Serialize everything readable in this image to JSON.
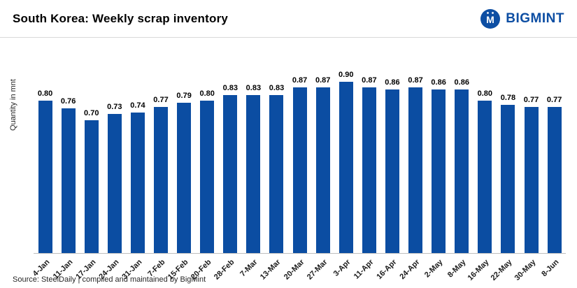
{
  "header": {
    "title": "South Korea: Weekly scrap inventory",
    "brand": "BIGMINT"
  },
  "chart_data": {
    "type": "bar",
    "title": "South Korea: Weekly scrap inventory",
    "categories": [
      "4-Jan",
      "11-Jan",
      "17-Jan",
      "24-Jan",
      "31-Jan",
      "7-Feb",
      "15-Feb",
      "20-Feb",
      "28-Feb",
      "7-Mar",
      "13-Mar",
      "20-Mar",
      "27-Mar",
      "3-Apr",
      "11-Apr",
      "16-Apr",
      "24-Apr",
      "2-May",
      "8-May",
      "16-May",
      "22-May",
      "30-May",
      "8-Jun"
    ],
    "values": [
      0.8,
      0.76,
      0.7,
      0.73,
      0.74,
      0.77,
      0.79,
      0.8,
      0.83,
      0.83,
      0.83,
      0.87,
      0.87,
      0.9,
      0.87,
      0.86,
      0.87,
      0.86,
      0.86,
      0.8,
      0.78,
      0.77,
      0.77
    ],
    "xlabel": "",
    "ylabel": "Quantity in mnt",
    "ylim": [
      0,
      1.0
    ],
    "bar_color": "#0b4da2",
    "grid": false,
    "legend": "none",
    "value_labels": true
  },
  "footer": {
    "source": "Source: SteelDaily | compiled and maintained by BigMint"
  }
}
